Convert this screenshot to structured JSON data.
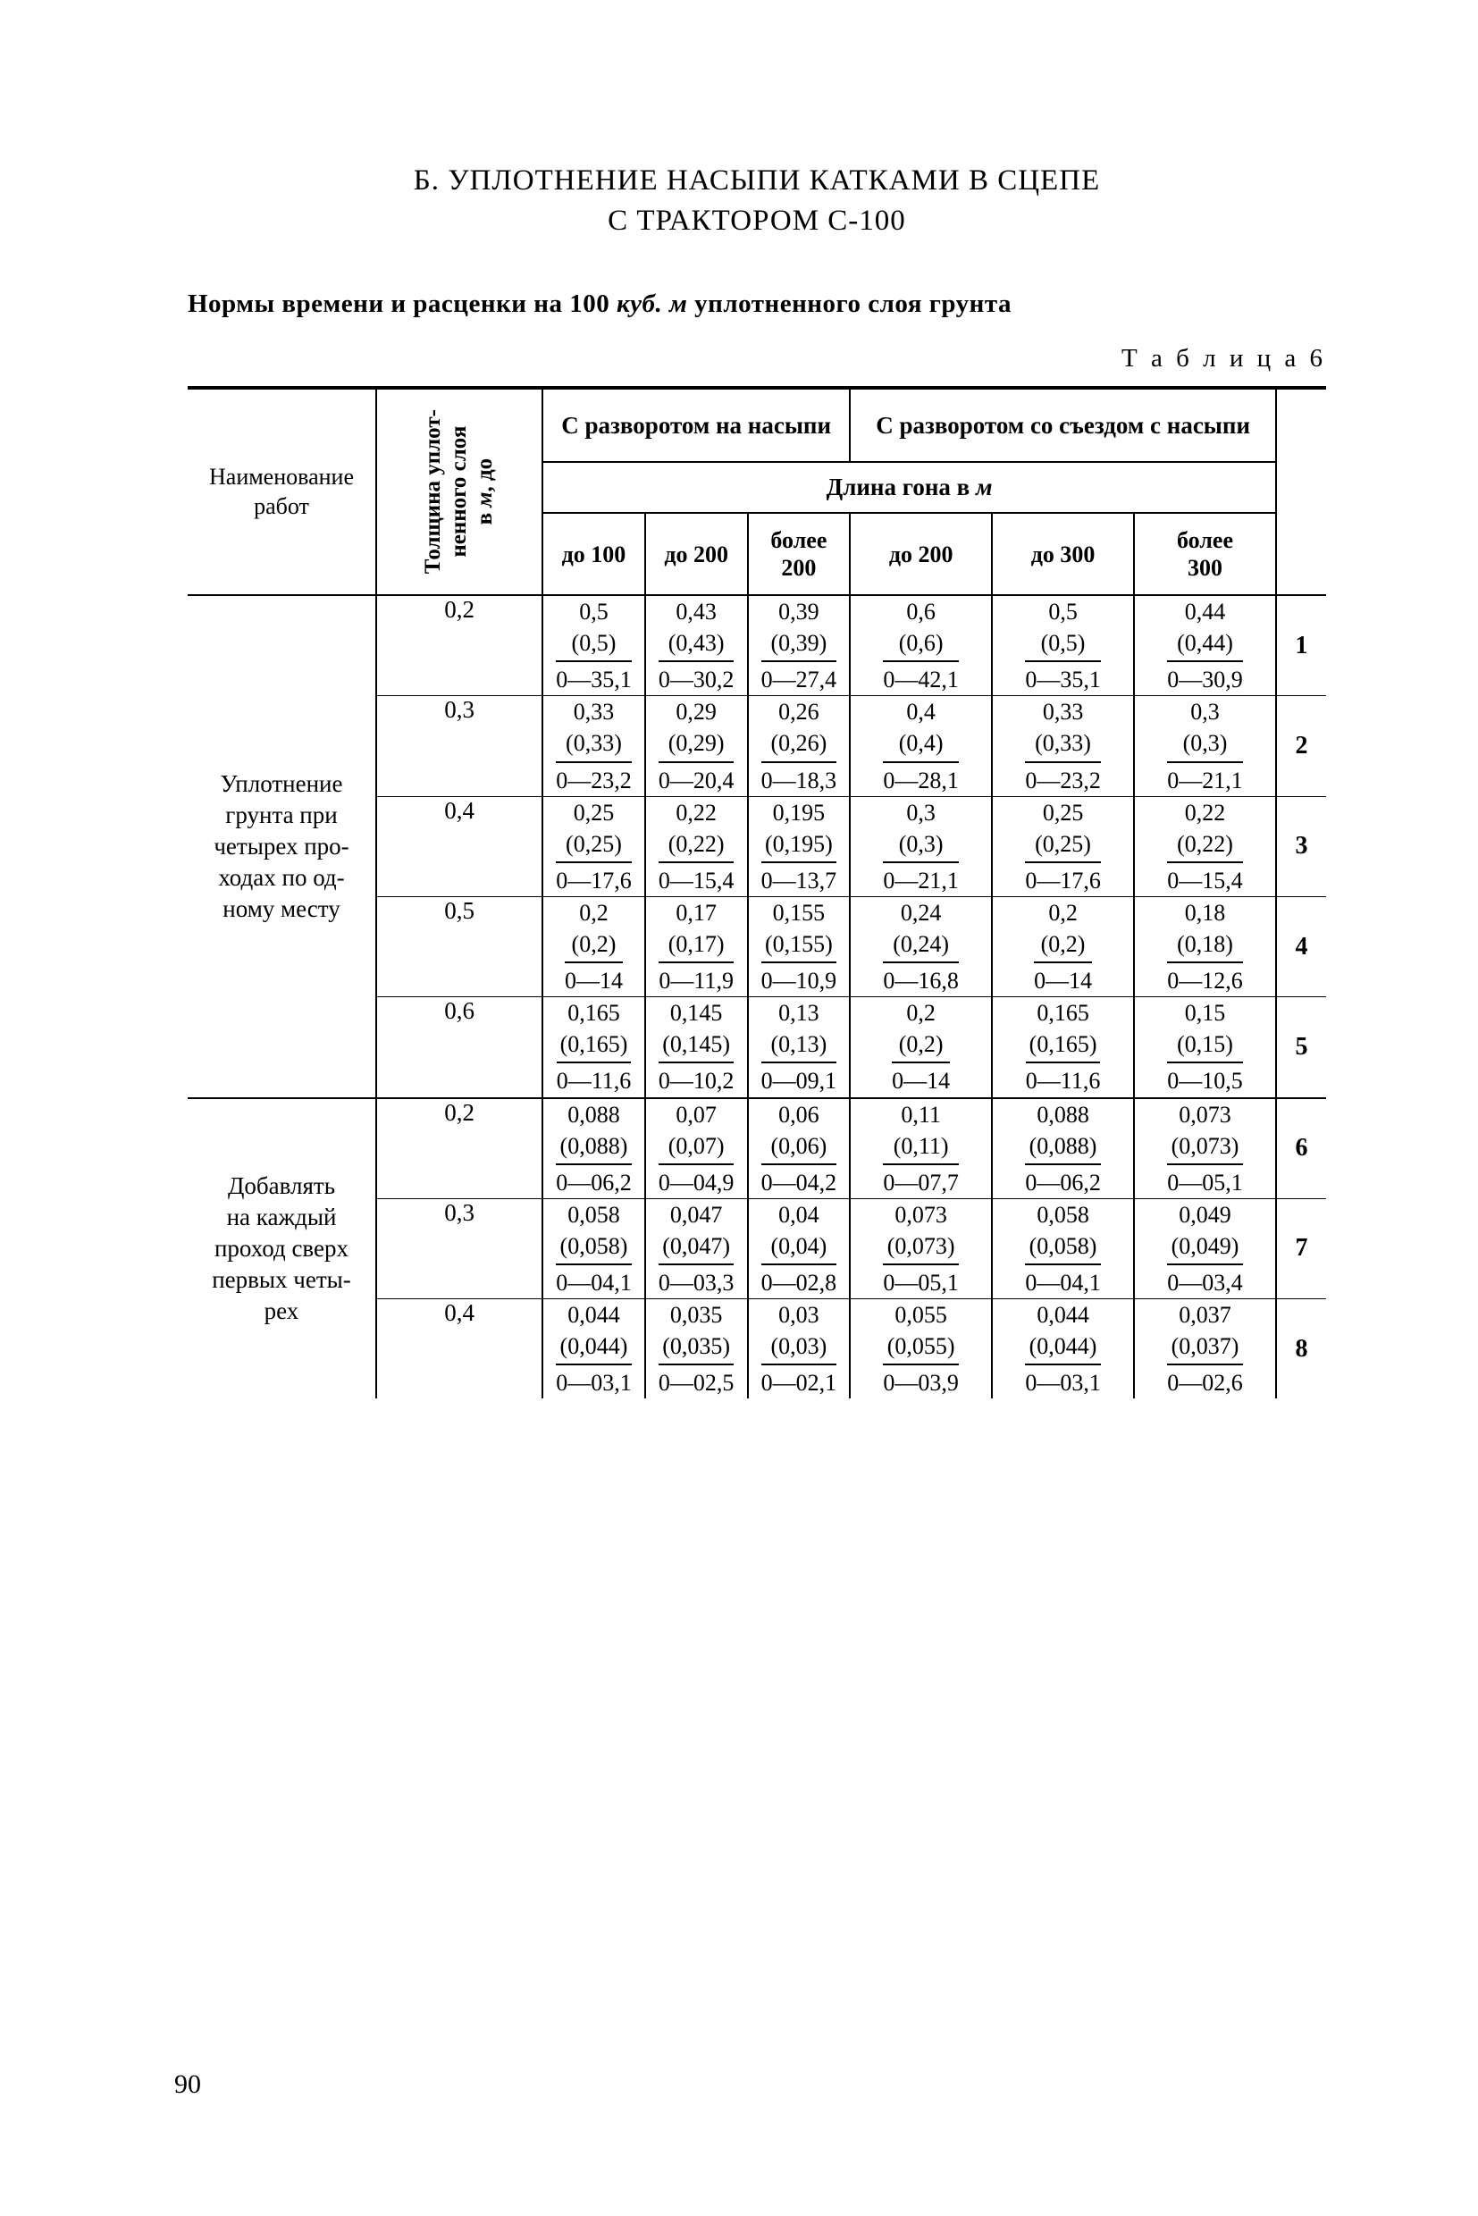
{
  "title_line1": "Б. УПЛОТНЕНИЕ НАСЫПИ КАТКАМИ В СЦЕПЕ",
  "title_line2": "С ТРАКТОРОМ С-100",
  "subtitle_pre": "Нормы времени и расценки на 100 ",
  "subtitle_ital": "куб. м",
  "subtitle_post": " уплотненного слоя грунта",
  "table_label": "Т а б л и ц а   6",
  "hdr_name": "Наименование работ",
  "hdr_thickness": "Толщина уплот-\nненного слоя\nв м, до",
  "hdr_group_a": "С разворотом на насыпи",
  "hdr_group_b": "С разворотом со съездом с насыпи",
  "hdr_span_pre": "Длина гона в ",
  "hdr_span_unit": "м",
  "hdr_a1": "до 100",
  "hdr_a2": "до 200",
  "hdr_a3": "более 200",
  "hdr_b1": "до 200",
  "hdr_b2": "до 300",
  "hdr_b3": "более 300",
  "groups": [
    {
      "name": "Уплотнение грунта при четырех про- ходах по од- ному месту",
      "rows": [
        {
          "thick": "0,2",
          "rn": "1",
          "c": [
            [
              "0,5",
              "(0,5)",
              "0—35,1"
            ],
            [
              "0,43",
              "(0,43)",
              "0—30,2"
            ],
            [
              "0,39",
              "(0,39)",
              "0—27,4"
            ],
            [
              "0,6",
              "(0,6)",
              "0—42,1"
            ],
            [
              "0,5",
              "(0,5)",
              "0—35,1"
            ],
            [
              "0,44",
              "(0,44)",
              "0—30,9"
            ]
          ]
        },
        {
          "thick": "0,3",
          "rn": "2",
          "c": [
            [
              "0,33",
              "(0,33)",
              "0—23,2"
            ],
            [
              "0,29",
              "(0,29)",
              "0—20,4"
            ],
            [
              "0,26",
              "(0,26)",
              "0—18,3"
            ],
            [
              "0,4",
              "(0,4)",
              "0—28,1"
            ],
            [
              "0,33",
              "(0,33)",
              "0—23,2"
            ],
            [
              "0,3",
              "(0,3)",
              "0—21,1"
            ]
          ]
        },
        {
          "thick": "0,4",
          "rn": "3",
          "c": [
            [
              "0,25",
              "(0,25)",
              "0—17,6"
            ],
            [
              "0,22",
              "(0,22)",
              "0—15,4"
            ],
            [
              "0,195",
              "(0,195)",
              "0—13,7"
            ],
            [
              "0,3",
              "(0,3)",
              "0—21,1"
            ],
            [
              "0,25",
              "(0,25)",
              "0—17,6"
            ],
            [
              "0,22",
              "(0,22)",
              "0—15,4"
            ]
          ]
        },
        {
          "thick": "0,5",
          "rn": "4",
          "c": [
            [
              "0,2",
              "(0,2)",
              "0—14"
            ],
            [
              "0,17",
              "(0,17)",
              "0—11,9"
            ],
            [
              "0,155",
              "(0,155)",
              "0—10,9"
            ],
            [
              "0,24",
              "(0,24)",
              "0—16,8"
            ],
            [
              "0,2",
              "(0,2)",
              "0—14"
            ],
            [
              "0,18",
              "(0,18)",
              "0—12,6"
            ]
          ]
        },
        {
          "thick": "0,6",
          "rn": "5",
          "c": [
            [
              "0,165",
              "(0,165)",
              "0—11,6"
            ],
            [
              "0,145",
              "(0,145)",
              "0—10,2"
            ],
            [
              "0,13",
              "(0,13)",
              "0—09,1"
            ],
            [
              "0,2",
              "(0,2)",
              "0—14"
            ],
            [
              "0,165",
              "(0,165)",
              "0—11,6"
            ],
            [
              "0,15",
              "(0,15)",
              "0—10,5"
            ]
          ]
        }
      ]
    },
    {
      "name": "Добавлять на каждый проход сверх первых четы- рех",
      "rows": [
        {
          "thick": "0,2",
          "rn": "6",
          "c": [
            [
              "0,088",
              "(0,088)",
              "0—06,2"
            ],
            [
              "0,07",
              "(0,07)",
              "0—04,9"
            ],
            [
              "0,06",
              "(0,06)",
              "0—04,2"
            ],
            [
              "0,11",
              "(0,11)",
              "0—07,7"
            ],
            [
              "0,088",
              "(0,088)",
              "0—06,2"
            ],
            [
              "0,073",
              "(0,073)",
              "0—05,1"
            ]
          ]
        },
        {
          "thick": "0,3",
          "rn": "7",
          "c": [
            [
              "0,058",
              "(0,058)",
              "0—04,1"
            ],
            [
              "0,047",
              "(0,047)",
              "0—03,3"
            ],
            [
              "0,04",
              "(0,04)",
              "0—02,8"
            ],
            [
              "0,073",
              "(0,073)",
              "0—05,1"
            ],
            [
              "0,058",
              "(0,058)",
              "0—04,1"
            ],
            [
              "0,049",
              "(0,049)",
              "0—03,4"
            ]
          ]
        },
        {
          "thick": "0,4",
          "rn": "8",
          "c": [
            [
              "0,044",
              "(0,044)",
              "0—03,1"
            ],
            [
              "0,035",
              "(0,035)",
              "0—02,5"
            ],
            [
              "0,03",
              "(0,03)",
              "0—02,1"
            ],
            [
              "0,055",
              "(0,055)",
              "0—03,9"
            ],
            [
              "0,044",
              "(0,044)",
              "0—03,1"
            ],
            [
              "0,037",
              "(0,037)",
              "0—02,6"
            ]
          ]
        }
      ]
    }
  ],
  "page_number": "90"
}
